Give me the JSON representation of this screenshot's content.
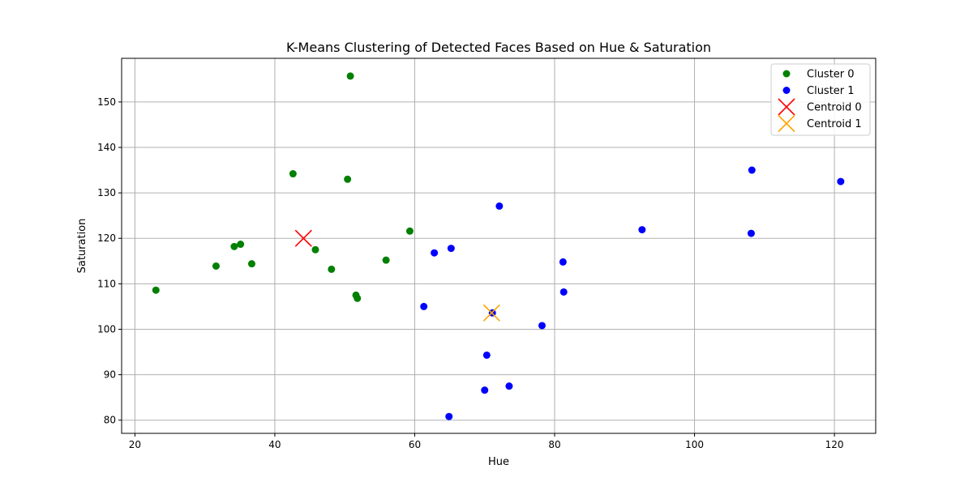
{
  "chart_data": {
    "type": "scatter",
    "title": "K-Means Clustering of Detected Faces Based on Hue & Saturation",
    "xlabel": "Hue",
    "ylabel": "Saturation",
    "xlim": [
      18.1,
      125.9
    ],
    "ylim": [
      77.1,
      159.6
    ],
    "xticks": [
      20,
      40,
      60,
      80,
      100,
      120
    ],
    "yticks": [
      80,
      90,
      100,
      110,
      120,
      130,
      140,
      150
    ],
    "grid": true,
    "legend_position": "top-right",
    "series": [
      {
        "name": "Cluster 0",
        "color": "#008000",
        "marker": "circle",
        "points": [
          {
            "x": 50.8,
            "y": 155.7
          },
          {
            "x": 42.6,
            "y": 134.2
          },
          {
            "x": 50.4,
            "y": 133.0
          },
          {
            "x": 59.3,
            "y": 121.6
          },
          {
            "x": 35.1,
            "y": 118.7
          },
          {
            "x": 34.2,
            "y": 118.2
          },
          {
            "x": 45.8,
            "y": 117.5
          },
          {
            "x": 55.9,
            "y": 115.2
          },
          {
            "x": 36.7,
            "y": 114.4
          },
          {
            "x": 31.6,
            "y": 113.9
          },
          {
            "x": 48.1,
            "y": 113.2
          },
          {
            "x": 51.6,
            "y": 107.5
          },
          {
            "x": 51.8,
            "y": 106.8
          },
          {
            "x": 23.0,
            "y": 108.6
          }
        ]
      },
      {
        "name": "Cluster 1",
        "color": "#0000ff",
        "marker": "circle",
        "points": [
          {
            "x": 108.2,
            "y": 135.0
          },
          {
            "x": 120.9,
            "y": 132.5
          },
          {
            "x": 72.1,
            "y": 127.1
          },
          {
            "x": 92.5,
            "y": 121.9
          },
          {
            "x": 108.1,
            "y": 121.1
          },
          {
            "x": 65.2,
            "y": 117.8
          },
          {
            "x": 62.8,
            "y": 116.8
          },
          {
            "x": 81.2,
            "y": 114.8
          },
          {
            "x": 81.3,
            "y": 108.2
          },
          {
            "x": 61.3,
            "y": 105.0
          },
          {
            "x": 71.1,
            "y": 103.6
          },
          {
            "x": 78.2,
            "y": 100.8
          },
          {
            "x": 70.3,
            "y": 94.3
          },
          {
            "x": 73.5,
            "y": 87.5
          },
          {
            "x": 70.0,
            "y": 86.6
          },
          {
            "x": 64.9,
            "y": 80.8
          }
        ]
      },
      {
        "name": "Centroid 0",
        "color": "#ff0000",
        "marker": "x",
        "points": [
          {
            "x": 44.1,
            "y": 120.0
          }
        ]
      },
      {
        "name": "Centroid 1",
        "color": "#ffa500",
        "marker": "x",
        "points": [
          {
            "x": 71.0,
            "y": 103.6
          }
        ]
      }
    ]
  }
}
